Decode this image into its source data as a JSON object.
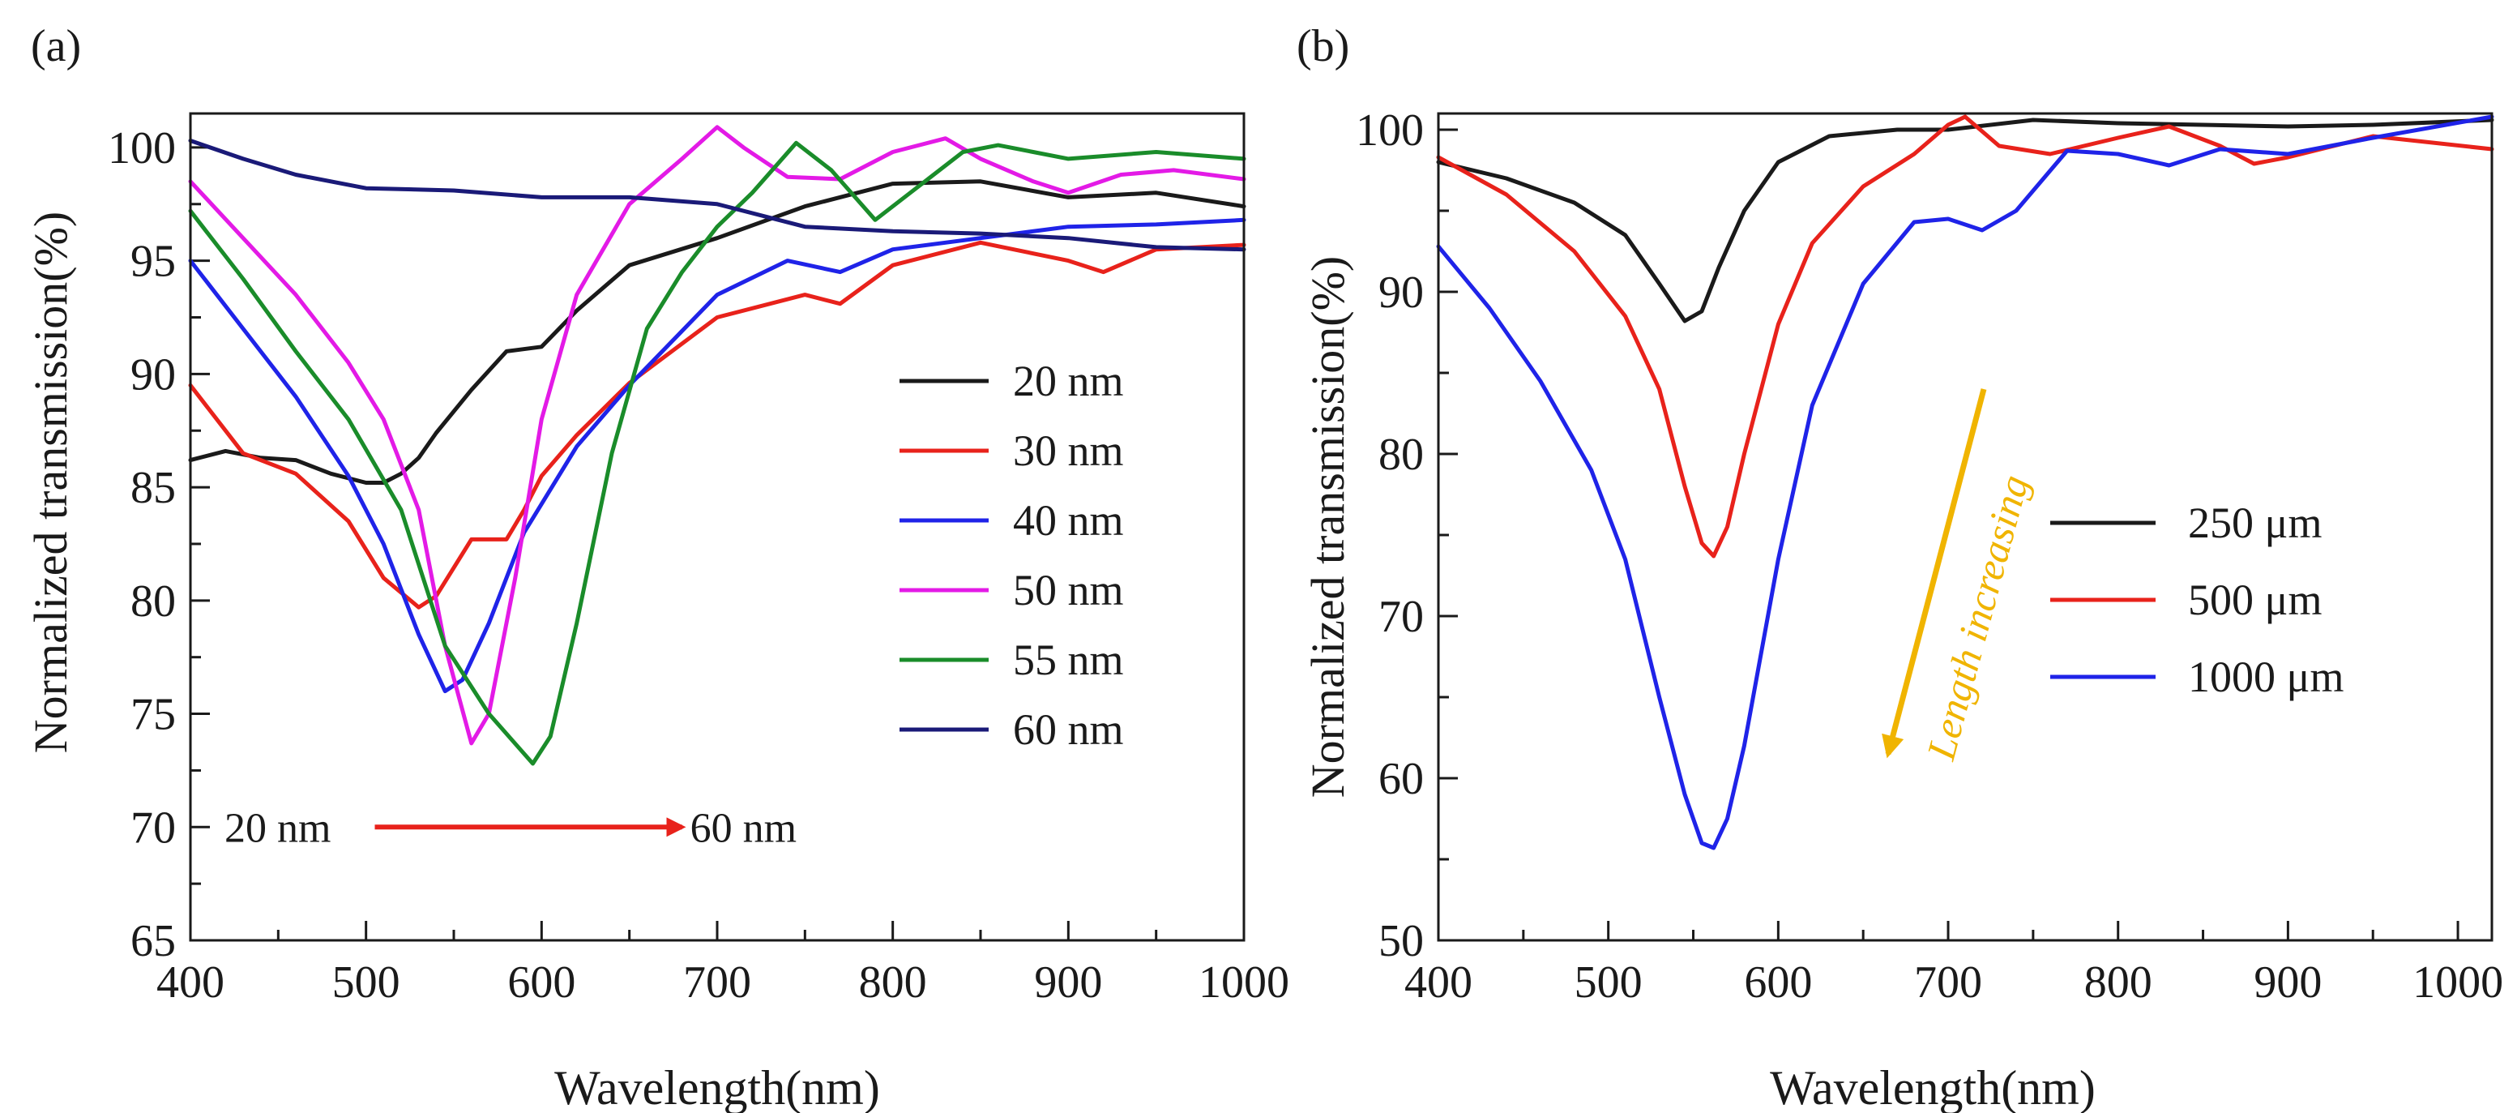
{
  "chart_data": [
    {
      "type": "line",
      "panel_label": "(a)",
      "title": "",
      "xlabel": "Wavelength(nm)",
      "ylabel": "Normalized transmission(%)",
      "xlim": [
        400,
        1000
      ],
      "ylim": [
        65,
        101.5
      ],
      "xticks": [
        400,
        500,
        600,
        700,
        800,
        900,
        1000
      ],
      "yticks": [
        65,
        70,
        75,
        80,
        85,
        90,
        95,
        100
      ],
      "legend_position": "center-right",
      "annotation": {
        "start_label": "20 nm",
        "end_label": "60 nm",
        "color": "#e8221b",
        "y": 70,
        "x_from": 505,
        "x_to": 680
      },
      "series": [
        {
          "name": "20 nm",
          "color": "#1a1a1a",
          "x": [
            400,
            420,
            440,
            460,
            480,
            500,
            510,
            520,
            530,
            540,
            560,
            580,
            600,
            620,
            650,
            700,
            750,
            800,
            850,
            900,
            950,
            1000
          ],
          "y": [
            86.2,
            86.6,
            86.3,
            86.2,
            85.6,
            85.2,
            85.2,
            85.6,
            86.3,
            87.4,
            89.3,
            91.0,
            91.2,
            92.8,
            94.8,
            96.0,
            97.4,
            98.4,
            98.5,
            97.8,
            98.0,
            97.4
          ]
        },
        {
          "name": "30 nm",
          "color": "#e8221b",
          "x": [
            400,
            430,
            460,
            490,
            510,
            530,
            540,
            560,
            580,
            590,
            600,
            620,
            650,
            700,
            750,
            770,
            800,
            850,
            900,
            920,
            950,
            1000
          ],
          "y": [
            89.5,
            86.5,
            85.6,
            83.5,
            81.0,
            79.7,
            80.2,
            82.7,
            82.7,
            84.0,
            85.5,
            87.3,
            89.6,
            92.5,
            93.5,
            93.1,
            94.8,
            95.8,
            95.0,
            94.5,
            95.5,
            95.7
          ]
        },
        {
          "name": "40 nm",
          "color": "#1f23e8",
          "x": [
            400,
            430,
            460,
            490,
            510,
            530,
            545,
            555,
            570,
            590,
            620,
            650,
            700,
            740,
            770,
            800,
            850,
            900,
            950,
            1000
          ],
          "y": [
            95.0,
            92.0,
            89.0,
            85.5,
            82.5,
            78.5,
            76.0,
            76.5,
            79.0,
            83.0,
            86.8,
            89.5,
            93.5,
            95.0,
            94.5,
            95.5,
            96.0,
            96.5,
            96.6,
            96.8
          ]
        },
        {
          "name": "50 nm",
          "color": "#e31ae6",
          "x": [
            400,
            430,
            460,
            490,
            510,
            530,
            545,
            560,
            570,
            585,
            600,
            620,
            650,
            680,
            700,
            715,
            740,
            770,
            800,
            830,
            850,
            880,
            900,
            930,
            960,
            1000
          ],
          "y": [
            98.5,
            96.0,
            93.5,
            90.5,
            88.0,
            84.0,
            78.0,
            73.7,
            75.0,
            81.0,
            88.0,
            93.5,
            97.5,
            99.5,
            100.9,
            100.0,
            98.7,
            98.6,
            99.8,
            100.4,
            99.5,
            98.5,
            98.0,
            98.8,
            99.0,
            98.6
          ]
        },
        {
          "name": "55 nm",
          "color": "#1a8c2a",
          "x": [
            400,
            430,
            460,
            490,
            520,
            545,
            570,
            595,
            605,
            620,
            640,
            660,
            680,
            700,
            720,
            745,
            765,
            790,
            810,
            840,
            860,
            880,
            900,
            950,
            1000
          ],
          "y": [
            97.2,
            94.2,
            91.0,
            88.0,
            84.0,
            78.0,
            75.0,
            72.8,
            74.0,
            79.0,
            86.5,
            92.0,
            94.5,
            96.5,
            98.0,
            100.2,
            99.0,
            96.8,
            98.0,
            99.8,
            100.1,
            99.8,
            99.5,
            99.8,
            99.5
          ]
        },
        {
          "name": "60 nm",
          "color": "#1a1a78",
          "x": [
            400,
            430,
            460,
            500,
            550,
            600,
            650,
            700,
            750,
            800,
            850,
            900,
            950,
            1000
          ],
          "y": [
            100.3,
            99.5,
            98.8,
            98.2,
            98.1,
            97.8,
            97.8,
            97.5,
            96.5,
            96.3,
            96.2,
            96.0,
            95.6,
            95.5
          ]
        }
      ]
    },
    {
      "type": "line",
      "panel_label": "(b)",
      "title": "",
      "xlabel": "Wavelength(nm)",
      "ylabel": "Normalized transmission(%)",
      "xlim": [
        400,
        1020
      ],
      "ylim": [
        50,
        101
      ],
      "xticks": [
        400,
        500,
        600,
        700,
        800,
        900,
        1000
      ],
      "yticks": [
        50,
        60,
        70,
        80,
        90,
        100
      ],
      "legend_position": "center-right",
      "annotation": {
        "text": "Length increasing",
        "color": "#f0b400"
      },
      "series": [
        {
          "name": "250 μm",
          "color": "#1a1a1a",
          "x": [
            400,
            440,
            480,
            510,
            530,
            545,
            555,
            565,
            580,
            600,
            630,
            670,
            700,
            750,
            800,
            850,
            900,
            950,
            1020
          ],
          "y": [
            98.0,
            97.0,
            95.5,
            93.5,
            90.5,
            88.2,
            88.8,
            91.5,
            95.0,
            98.0,
            99.6,
            100.0,
            100.0,
            100.6,
            100.4,
            100.3,
            100.2,
            100.3,
            100.6
          ]
        },
        {
          "name": "500 μm",
          "color": "#e8221b",
          "x": [
            400,
            440,
            480,
            510,
            530,
            545,
            555,
            562,
            570,
            580,
            600,
            620,
            650,
            680,
            700,
            710,
            730,
            760,
            800,
            830,
            860,
            880,
            900,
            950,
            1020
          ],
          "y": [
            98.3,
            96.0,
            92.5,
            88.5,
            84.0,
            78.0,
            74.5,
            73.7,
            75.5,
            80.0,
            88.0,
            93.0,
            96.5,
            98.5,
            100.3,
            100.8,
            99.0,
            98.5,
            99.5,
            100.2,
            99.0,
            97.9,
            98.3,
            99.6,
            98.8
          ]
        },
        {
          "name": "1000 μm",
          "color": "#1f23e8",
          "x": [
            400,
            430,
            460,
            490,
            510,
            530,
            545,
            555,
            562,
            570,
            580,
            600,
            620,
            650,
            680,
            700,
            720,
            740,
            770,
            800,
            830,
            860,
            900,
            950,
            1020
          ],
          "y": [
            92.8,
            89.0,
            84.5,
            79.0,
            73.5,
            65.0,
            59.0,
            56.0,
            55.7,
            57.5,
            62.0,
            73.5,
            83.0,
            90.5,
            94.3,
            94.5,
            93.8,
            95.0,
            98.7,
            98.5,
            97.8,
            98.8,
            98.5,
            99.5,
            100.8
          ]
        }
      ]
    }
  ]
}
